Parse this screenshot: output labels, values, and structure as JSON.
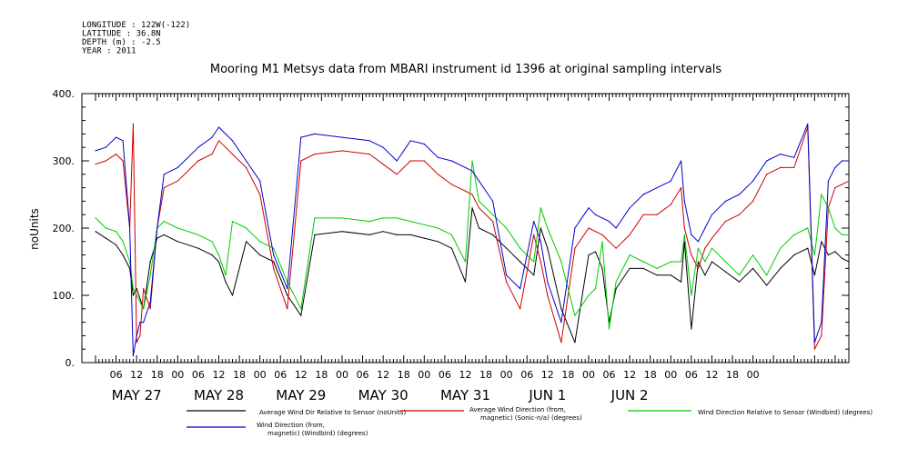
{
  "header": {
    "meta_lines": [
      "LONGITUDE : 122W(-122)",
      "LATITUDE : 36.8N",
      "DEPTH (m) : -2.5",
      "YEAR : 2011"
    ],
    "title": "Mooring M1 Metsys data from MBARI instrument id 1396 at original sampling intervals"
  },
  "chart_data": {
    "type": "line",
    "title": "Mooring M1 Metsys data from MBARI instrument id 1396 at original sampling intervals",
    "ylabel": "noUnits",
    "xlabel": "",
    "ylim": [
      0,
      400
    ],
    "yticks": [
      "0.",
      "100.",
      "200.",
      "300.",
      "400."
    ],
    "x_hour_labels": [
      "06",
      "12",
      "18",
      "00",
      "06",
      "12",
      "18",
      "00",
      "06",
      "12",
      "18",
      "00",
      "06",
      "12",
      "18",
      "00",
      "06",
      "12",
      "18",
      "00",
      "06",
      "12",
      "18",
      "00",
      "06",
      "12",
      "18",
      "00",
      "06",
      "12",
      "18",
      "00"
    ],
    "x_day_labels": [
      "MAY 27",
      "MAY 28",
      "MAY 29",
      "MAY 30",
      "MAY 31",
      "JUN  1",
      "JUN  2"
    ],
    "x_unit": "hours since 2011-05-27 00:00",
    "grid": false,
    "legend_position": "bottom",
    "series": [
      {
        "name": "Average Wind Dir Relative to Sensor (noUnits)",
        "color": "#000000",
        "x": [
          0,
          3,
          6,
          8,
          10,
          11,
          12,
          14,
          16,
          18,
          20,
          24,
          30,
          34,
          36,
          38,
          40,
          44,
          48,
          52,
          56,
          60,
          64,
          72,
          80,
          84,
          88,
          92,
          96,
          100,
          104,
          108,
          110,
          112,
          116,
          120,
          124,
          128,
          130,
          132,
          136,
          140,
          144,
          146,
          148,
          150,
          152,
          156,
          160,
          164,
          168,
          171,
          172,
          174,
          176,
          178,
          180,
          184,
          188,
          192,
          196,
          200,
          204,
          208,
          210,
          212,
          214,
          216,
          218,
          220
        ],
        "values": [
          195,
          185,
          175,
          160,
          140,
          100,
          110,
          80,
          150,
          185,
          190,
          180,
          170,
          160,
          150,
          120,
          100,
          180,
          160,
          150,
          100,
          70,
          190,
          195,
          190,
          195,
          190,
          190,
          185,
          180,
          170,
          120,
          230,
          200,
          190,
          170,
          150,
          130,
          200,
          170,
          80,
          30,
          160,
          165,
          140,
          60,
          110,
          140,
          140,
          130,
          130,
          120,
          180,
          50,
          150,
          130,
          150,
          135,
          120,
          140,
          115,
          140,
          160,
          170,
          130,
          180,
          160,
          165,
          155,
          150
        ]
      },
      {
        "name": "Average Wind Direction (from, magnetic) (Sonic-n/a) (degrees)",
        "color": "#cc0000",
        "x": [
          0,
          3,
          6,
          8,
          10,
          11,
          12,
          13,
          14,
          16,
          18,
          20,
          24,
          30,
          34,
          36,
          38,
          40,
          44,
          48,
          52,
          56,
          60,
          64,
          72,
          80,
          84,
          88,
          92,
          96,
          100,
          104,
          108,
          110,
          112,
          116,
          120,
          124,
          128,
          130,
          132,
          136,
          140,
          144,
          146,
          148,
          150,
          152,
          156,
          160,
          164,
          168,
          171,
          172,
          174,
          176,
          178,
          180,
          184,
          188,
          192,
          196,
          200,
          204,
          208,
          210,
          212,
          214,
          216,
          218,
          220
        ],
        "values": [
          295,
          300,
          310,
          300,
          200,
          355,
          30,
          40,
          110,
          80,
          200,
          260,
          270,
          300,
          310,
          330,
          320,
          310,
          290,
          250,
          140,
          80,
          300,
          310,
          315,
          310,
          295,
          280,
          300,
          300,
          280,
          265,
          255,
          250,
          230,
          210,
          120,
          80,
          190,
          150,
          100,
          30,
          170,
          200,
          195,
          190,
          180,
          170,
          190,
          220,
          220,
          235,
          260,
          200,
          160,
          140,
          170,
          185,
          210,
          220,
          240,
          280,
          290,
          290,
          350,
          20,
          40,
          230,
          260,
          265,
          270
        ]
      },
      {
        "name": "Wind Direction Relative to Sensor (Windbird) (degrees)",
        "color": "#00cc00",
        "x": [
          0,
          3,
          6,
          8,
          10,
          11,
          12,
          14,
          16,
          18,
          20,
          24,
          30,
          34,
          36,
          38,
          40,
          44,
          48,
          52,
          56,
          60,
          64,
          72,
          80,
          84,
          88,
          92,
          96,
          100,
          104,
          108,
          110,
          112,
          116,
          120,
          124,
          128,
          130,
          132,
          136,
          140,
          144,
          146,
          148,
          150,
          152,
          156,
          160,
          164,
          168,
          171,
          172,
          174,
          176,
          178,
          180,
          184,
          188,
          192,
          196,
          200,
          204,
          208,
          210,
          212,
          214,
          216,
          218,
          220
        ],
        "values": [
          215,
          200,
          195,
          180,
          150,
          110,
          100,
          80,
          130,
          200,
          210,
          200,
          190,
          180,
          160,
          130,
          210,
          200,
          180,
          170,
          120,
          80,
          215,
          215,
          210,
          215,
          215,
          210,
          205,
          200,
          190,
          150,
          300,
          240,
          220,
          200,
          170,
          150,
          230,
          200,
          150,
          70,
          100,
          110,
          180,
          50,
          120,
          160,
          150,
          140,
          150,
          150,
          190,
          100,
          170,
          150,
          170,
          150,
          130,
          160,
          130,
          170,
          190,
          200,
          160,
          250,
          230,
          200,
          190,
          190
        ]
      },
      {
        "name": "Wind Direction (from, magnetic) (Windbird) (degrees)",
        "color": "#0000cc",
        "x": [
          0,
          3,
          6,
          8,
          10,
          11,
          12,
          13,
          14,
          16,
          18,
          20,
          24,
          30,
          34,
          36,
          38,
          40,
          44,
          48,
          52,
          56,
          60,
          64,
          72,
          80,
          84,
          88,
          92,
          96,
          100,
          104,
          108,
          110,
          112,
          116,
          120,
          124,
          128,
          130,
          132,
          136,
          140,
          144,
          146,
          148,
          150,
          152,
          156,
          160,
          164,
          168,
          171,
          172,
          174,
          176,
          178,
          180,
          184,
          188,
          192,
          196,
          200,
          204,
          208,
          210,
          212,
          214,
          216,
          218,
          220
        ],
        "values": [
          315,
          320,
          335,
          330,
          200,
          10,
          40,
          60,
          60,
          90,
          200,
          280,
          290,
          320,
          335,
          350,
          340,
          330,
          300,
          270,
          160,
          110,
          335,
          340,
          335,
          330,
          320,
          300,
          330,
          325,
          305,
          300,
          290,
          285,
          270,
          240,
          130,
          110,
          210,
          180,
          120,
          60,
          200,
          230,
          220,
          215,
          210,
          200,
          230,
          250,
          260,
          270,
          300,
          240,
          190,
          180,
          200,
          220,
          240,
          250,
          270,
          300,
          310,
          305,
          355,
          30,
          60,
          270,
          290,
          300,
          300
        ]
      }
    ]
  },
  "legend": {
    "entries": [
      {
        "lines": [
          "Average Wind Dir Relative to Sensor (noUnits)"
        ],
        "color": "#000000"
      },
      {
        "lines": [
          "Average Wind Direction (from,",
          "magnetic) (Sonic-n/a) (degrees)"
        ],
        "color": "#cc0000"
      },
      {
        "lines": [
          "Wind Direction Relative to Sensor (Windbird) (degrees)"
        ],
        "color": "#00cc00"
      },
      {
        "lines": [
          "Wind Direction (from,",
          "magnetic) (Windbird) (degrees)"
        ],
        "color": "#0000cc"
      }
    ]
  }
}
